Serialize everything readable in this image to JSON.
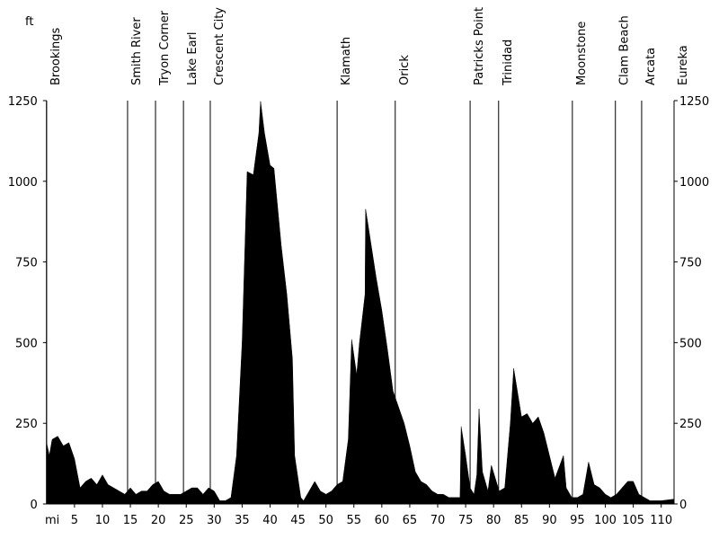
{
  "chart_data": {
    "type": "area",
    "y_unit_label": "ft",
    "x_unit_label": "mi",
    "color": "#000000",
    "xlim": [
      0,
      112.3
    ],
    "ylim": [
      0,
      1250
    ],
    "xticks": [
      5,
      10,
      15,
      20,
      25,
      30,
      35,
      40,
      45,
      50,
      55,
      60,
      65,
      70,
      75,
      80,
      85,
      90,
      95,
      100,
      105,
      110
    ],
    "yticks": [
      0,
      250,
      500,
      750,
      1000,
      1250
    ],
    "markers": [
      {
        "label": "Brookings",
        "x": 0
      },
      {
        "label": "Smith River",
        "x": 14.5
      },
      {
        "label": "Tryon Corner",
        "x": 19.5
      },
      {
        "label": "Lake Earl",
        "x": 24.5
      },
      {
        "label": "Crescent City",
        "x": 29.3
      },
      {
        "label": "Klamath",
        "x": 52
      },
      {
        "label": "Orick",
        "x": 62.4
      },
      {
        "label": "Patricks Point",
        "x": 75.8
      },
      {
        "label": "Trinidad",
        "x": 80.9
      },
      {
        "label": "Moonstone",
        "x": 94.1
      },
      {
        "label": "Clam Beach",
        "x": 101.8
      },
      {
        "label": "Arcata",
        "x": 106.5
      },
      {
        "label": "Eureka",
        "x": 112.3
      }
    ],
    "x": [
      0,
      0.5,
      1,
      2,
      3,
      4,
      5,
      6,
      7,
      8,
      9,
      10,
      11,
      12,
      13,
      14,
      15,
      16,
      17,
      18,
      19,
      20,
      21,
      22,
      23,
      24,
      25,
      26,
      27,
      28,
      29,
      30,
      31,
      32,
      33,
      34,
      35,
      35.9,
      37,
      38,
      38.3,
      39,
      40,
      40.7,
      42,
      43,
      44,
      44.4,
      45.5,
      46,
      47,
      48,
      49,
      50,
      51,
      52,
      53,
      54,
      54.6,
      55.5,
      56,
      57,
      57.1,
      59,
      60,
      61,
      62,
      63,
      64,
      65,
      66,
      67,
      68,
      69,
      70,
      71,
      72,
      73,
      74,
      74.2,
      75,
      75.8,
      76.5,
      77,
      77.4,
      78,
      79,
      79.6,
      81,
      82,
      83,
      83.6,
      85,
      86,
      87,
      88,
      89,
      90,
      91,
      92.5,
      93,
      94,
      95,
      96,
      97,
      98,
      99,
      100,
      101,
      102,
      103,
      104,
      105,
      106,
      107,
      108,
      110,
      112.3
    ],
    "y": [
      190,
      150,
      200,
      210,
      180,
      190,
      140,
      50,
      70,
      80,
      60,
      90,
      60,
      50,
      40,
      30,
      50,
      30,
      40,
      40,
      60,
      70,
      40,
      30,
      30,
      30,
      40,
      50,
      50,
      30,
      50,
      40,
      10,
      10,
      20,
      150,
      500,
      1030,
      1020,
      1150,
      1248,
      1150,
      1050,
      1040,
      800,
      650,
      450,
      150,
      20,
      10,
      40,
      70,
      40,
      30,
      40,
      60,
      70,
      200,
      510,
      400,
      500,
      650,
      914,
      700,
      600,
      480,
      350,
      300,
      250,
      180,
      100,
      70,
      60,
      40,
      30,
      30,
      20,
      20,
      20,
      240,
      150,
      50,
      30,
      90,
      295,
      100,
      40,
      120,
      40,
      50,
      250,
      420,
      270,
      280,
      250,
      270,
      220,
      150,
      80,
      150,
      50,
      20,
      20,
      30,
      130,
      60,
      50,
      30,
      20,
      30,
      50,
      70,
      70,
      30,
      20,
      10,
      10,
      15
    ]
  }
}
